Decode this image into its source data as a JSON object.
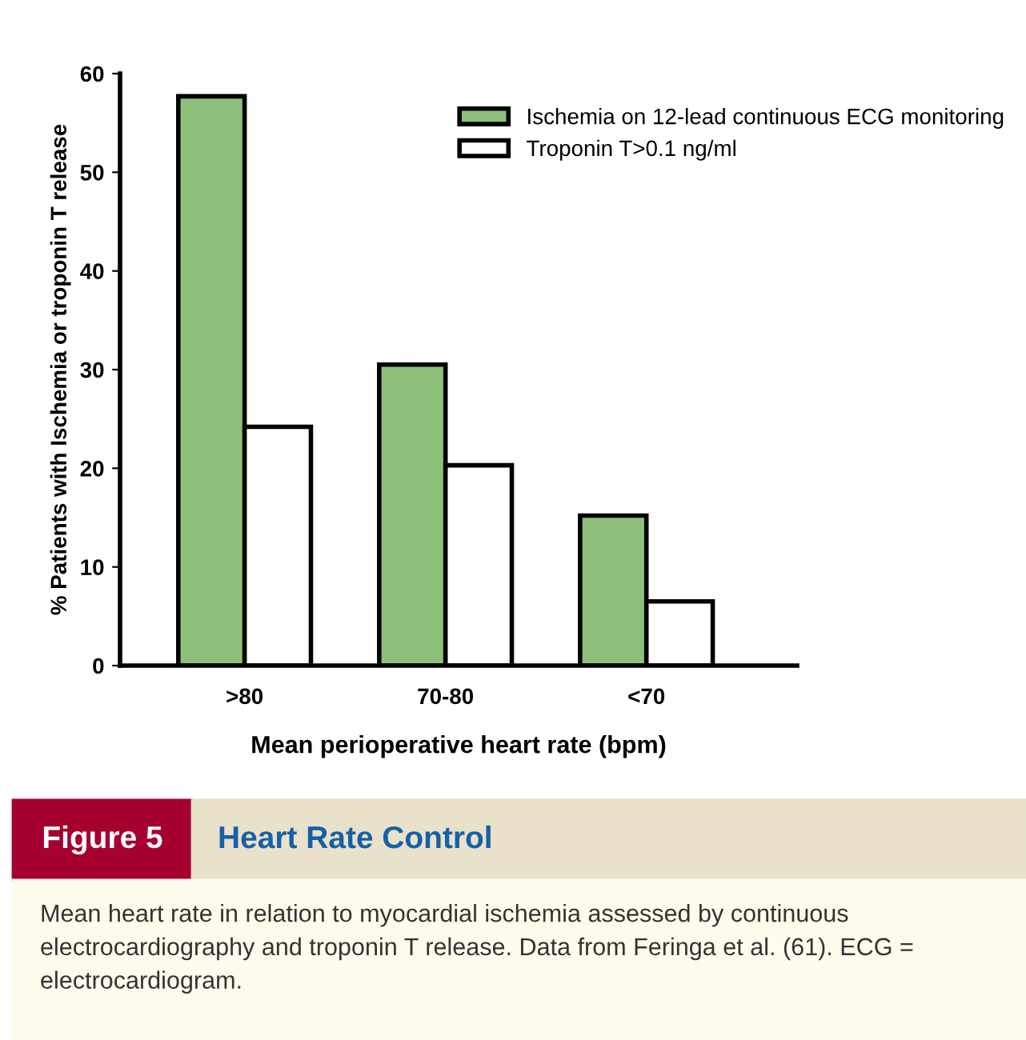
{
  "chart_data": {
    "type": "bar",
    "title": "Heart Rate Control",
    "xlabel": "Mean perioperative heart rate (bpm)",
    "ylabel": "% Patients with Ischemia or troponin T release",
    "categories": [
      ">80",
      "70-80",
      "<70"
    ],
    "series": [
      {
        "name": "Ischemia on 12-lead continuous ECG monitoring",
        "color": "#8ec07c",
        "values": [
          57.7,
          30.5,
          15.2
        ]
      },
      {
        "name": "Troponin T>0.1 ng/ml",
        "color": "#ffffff",
        "values": [
          24.2,
          20.3,
          6.5
        ]
      }
    ],
    "ylim": [
      0,
      60
    ],
    "yticks": [
      0,
      10,
      20,
      30,
      40,
      50,
      60
    ],
    "grid": false,
    "legend": "top right",
    "annotations": [
      "Figure 5",
      "Mean heart rate in relation to myocardial ischemia assessed by continuous electrocardiography and troponin T release. Data from Feringa et al. (61). ECG = electrocardiogram."
    ]
  }
}
